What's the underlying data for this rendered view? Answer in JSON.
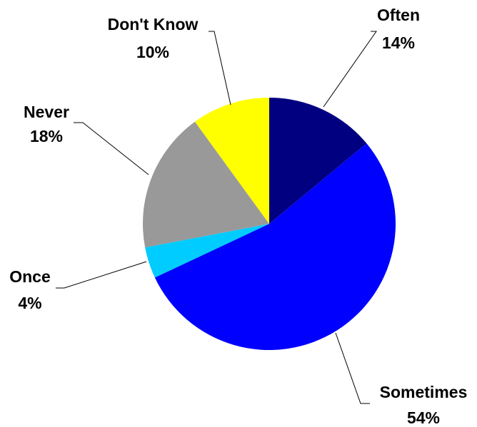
{
  "chart_data": {
    "type": "pie",
    "slices": [
      {
        "name": "Often",
        "value": 14,
        "label": "14%",
        "color": "#000080"
      },
      {
        "name": "Sometimes",
        "value": 54,
        "label": "54%",
        "color": "#0000FF"
      },
      {
        "name": "Once",
        "value": 4,
        "label": "4%",
        "color": "#00CCFF"
      },
      {
        "name": "Never",
        "value": 18,
        "label": "18%",
        "color": "#999999"
      },
      {
        "name": "Don't Know",
        "value": 10,
        "label": "10%",
        "color": "#FFFF00"
      }
    ],
    "start_angle_deg": 0,
    "direction": "clockwise"
  }
}
